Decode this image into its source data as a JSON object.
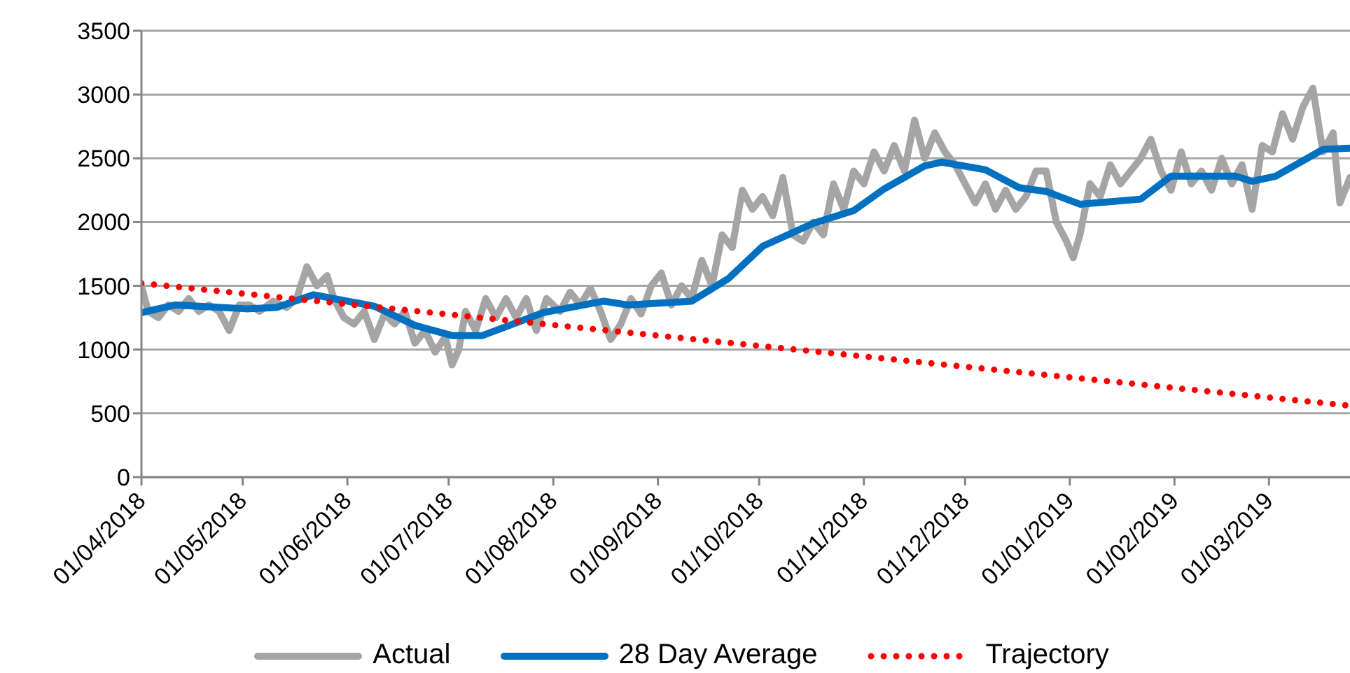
{
  "chart_data": {
    "type": "line",
    "xlim": [
      "2018-04-01",
      "2019-03-25"
    ],
    "xticks": [
      {
        "value": "2018-04-01",
        "label": "01/04/2018"
      },
      {
        "value": "2018-05-01",
        "label": "01/05/2018"
      },
      {
        "value": "2018-06-01",
        "label": "01/06/2018"
      },
      {
        "value": "2018-07-01",
        "label": "01/07/2018"
      },
      {
        "value": "2018-08-01",
        "label": "01/08/2018"
      },
      {
        "value": "2018-09-01",
        "label": "01/09/2018"
      },
      {
        "value": "2018-10-01",
        "label": "01/10/2018"
      },
      {
        "value": "2018-11-01",
        "label": "01/11/2018"
      },
      {
        "value": "2018-12-01",
        "label": "01/12/2018"
      },
      {
        "value": "2019-01-01",
        "label": "01/01/2019"
      },
      {
        "value": "2019-02-01",
        "label": "01/02/2019"
      },
      {
        "value": "2019-03-01",
        "label": "01/03/2019"
      }
    ],
    "ylim": [
      0,
      3500
    ],
    "yticks": [
      0,
      500,
      1000,
      1500,
      2000,
      2500,
      3000,
      3500
    ],
    "grid": "y",
    "legend": "bottom",
    "marker": "none",
    "series": [
      {
        "name": "Actual",
        "color": "#a5a5a5",
        "line_style": "solid",
        "x": [
          "2018-04-01",
          "2018-04-03",
          "2018-04-06",
          "2018-04-09",
          "2018-04-12",
          "2018-04-15",
          "2018-04-18",
          "2018-04-21",
          "2018-04-24",
          "2018-04-27",
          "2018-04-30",
          "2018-05-03",
          "2018-05-06",
          "2018-05-10",
          "2018-05-14",
          "2018-05-17",
          "2018-05-20",
          "2018-05-23",
          "2018-05-26",
          "2018-05-28",
          "2018-05-31",
          "2018-06-03",
          "2018-06-06",
          "2018-06-09",
          "2018-06-12",
          "2018-06-15",
          "2018-06-18",
          "2018-06-21",
          "2018-06-24",
          "2018-06-27",
          "2018-06-30",
          "2018-07-02",
          "2018-07-04",
          "2018-07-06",
          "2018-07-09",
          "2018-07-12",
          "2018-07-15",
          "2018-07-18",
          "2018-07-21",
          "2018-07-24",
          "2018-07-27",
          "2018-07-30",
          "2018-08-03",
          "2018-08-06",
          "2018-08-09",
          "2018-08-12",
          "2018-08-15",
          "2018-08-18",
          "2018-08-21",
          "2018-08-24",
          "2018-08-27",
          "2018-08-30",
          "2018-09-02",
          "2018-09-05",
          "2018-09-08",
          "2018-09-11",
          "2018-09-14",
          "2018-09-17",
          "2018-09-20",
          "2018-09-23",
          "2018-09-26",
          "2018-09-29",
          "2018-10-02",
          "2018-10-05",
          "2018-10-08",
          "2018-10-11",
          "2018-10-14",
          "2018-10-17",
          "2018-10-20",
          "2018-10-23",
          "2018-10-26",
          "2018-10-29",
          "2018-11-01",
          "2018-11-04",
          "2018-11-07",
          "2018-11-10",
          "2018-11-13",
          "2018-11-16",
          "2018-11-19",
          "2018-11-22",
          "2018-11-25",
          "2018-11-28",
          "2018-12-01",
          "2018-12-04",
          "2018-12-07",
          "2018-12-10",
          "2018-12-13",
          "2018-12-16",
          "2018-12-19",
          "2018-12-22",
          "2018-12-25",
          "2018-12-28",
          "2018-12-31",
          "2019-01-02",
          "2019-01-04",
          "2019-01-07",
          "2019-01-10",
          "2019-01-13",
          "2019-01-16",
          "2019-01-19",
          "2019-01-22",
          "2019-01-25",
          "2019-01-28",
          "2019-01-31",
          "2019-02-03",
          "2019-02-06",
          "2019-02-09",
          "2019-02-12",
          "2019-02-15",
          "2019-02-18",
          "2019-02-21",
          "2019-02-24",
          "2019-02-27",
          "2019-03-02",
          "2019-03-05",
          "2019-03-08",
          "2019-03-11",
          "2019-03-14",
          "2019-03-17",
          "2019-03-20",
          "2019-03-22",
          "2019-03-25"
        ],
        "values": [
          1500,
          1300,
          1250,
          1350,
          1300,
          1400,
          1300,
          1350,
          1300,
          1150,
          1350,
          1350,
          1300,
          1380,
          1330,
          1400,
          1650,
          1500,
          1580,
          1400,
          1250,
          1200,
          1300,
          1080,
          1280,
          1200,
          1300,
          1050,
          1150,
          980,
          1100,
          880,
          1000,
          1300,
          1150,
          1400,
          1250,
          1400,
          1250,
          1400,
          1150,
          1400,
          1300,
          1450,
          1350,
          1480,
          1300,
          1080,
          1200,
          1400,
          1280,
          1500,
          1600,
          1350,
          1500,
          1400,
          1700,
          1500,
          1900,
          1800,
          2250,
          2100,
          2200,
          2050,
          2350,
          1900,
          1850,
          2000,
          1900,
          2300,
          2100,
          2400,
          2300,
          2550,
          2400,
          2600,
          2400,
          2800,
          2500,
          2700,
          2550,
          2450,
          2300,
          2150,
          2300,
          2100,
          2250,
          2100,
          2200,
          2400,
          2400,
          2000,
          1850,
          1720,
          1900,
          2300,
          2200,
          2450,
          2300,
          2400,
          2500,
          2650,
          2400,
          2250,
          2550,
          2300,
          2400,
          2250,
          2500,
          2300,
          2450,
          2100,
          2600,
          2550,
          2850,
          2650,
          2900,
          3050,
          2550,
          2700,
          2150,
          2350
        ]
      },
      {
        "name": "28 Day Average",
        "color": "#0070c0",
        "line_style": "solid",
        "x": [
          "2018-04-01",
          "2018-04-11",
          "2018-05-02",
          "2018-05-11",
          "2018-05-22",
          "2018-06-09",
          "2018-06-21",
          "2018-07-02",
          "2018-07-11",
          "2018-07-29",
          "2018-08-16",
          "2018-08-23",
          "2018-09-11",
          "2018-09-22",
          "2018-10-02",
          "2018-10-17",
          "2018-10-29",
          "2018-11-07",
          "2018-11-19",
          "2018-11-24",
          "2018-12-07",
          "2018-12-17",
          "2018-12-25",
          "2019-01-04",
          "2019-01-22",
          "2019-01-31",
          "2019-02-19",
          "2019-02-24",
          "2019-03-03",
          "2019-03-17",
          "2019-03-25"
        ],
        "values": [
          1290,
          1350,
          1320,
          1330,
          1430,
          1340,
          1190,
          1110,
          1110,
          1290,
          1380,
          1350,
          1380,
          1560,
          1810,
          1990,
          2090,
          2260,
          2440,
          2470,
          2410,
          2270,
          2240,
          2140,
          2180,
          2360,
          2360,
          2320,
          2360,
          2570,
          2580
        ]
      },
      {
        "name": "Trajectory",
        "color": "#ff0000",
        "line_style": "dotted",
        "x": [
          "2018-04-01",
          "2019-03-25"
        ],
        "values": [
          1520,
          560
        ]
      }
    ]
  }
}
